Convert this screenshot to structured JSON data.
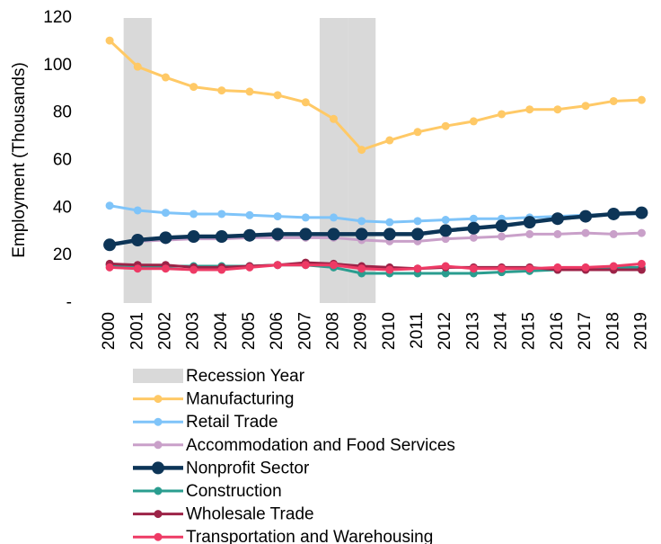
{
  "chart_data": {
    "type": "line",
    "y_label": "Employment (Thousands)",
    "categories": [
      "2000",
      "2001",
      "2002",
      "2003",
      "2004",
      "2005",
      "2006",
      "2007",
      "2008",
      "2009",
      "2010",
      "2011",
      "2012",
      "2013",
      "2014",
      "2015",
      "2016",
      "2017",
      "2018",
      "2019"
    ],
    "ylim": [
      0,
      120
    ],
    "yticks": [
      {
        "value": 0,
        "label": "-"
      },
      20,
      40,
      60,
      80,
      100,
      120
    ],
    "grid": false,
    "legend": "bottom",
    "series": [
      {
        "name": "Recession Year",
        "type": "bar",
        "color": "#d9d9d9",
        "values": [
          null,
          120,
          null,
          null,
          null,
          null,
          null,
          null,
          120,
          120,
          null,
          null,
          null,
          null,
          null,
          null,
          null,
          null,
          null,
          null
        ]
      },
      {
        "name": "Manufacturing",
        "color": "#ffc966",
        "values": [
          110.5,
          99.5,
          95,
          91,
          89.5,
          89,
          87.5,
          84.5,
          77.5,
          64.5,
          68.5,
          72,
          74.5,
          76.5,
          79.5,
          81.5,
          81.5,
          83,
          85,
          85.5
        ]
      },
      {
        "name": "Retail Trade",
        "color": "#7fc4f9",
        "values": [
          41,
          39,
          38,
          37.5,
          37.5,
          37,
          36.5,
          36,
          36,
          34.5,
          34,
          34.5,
          35,
          35.5,
          35.5,
          36,
          36.5,
          37,
          37.5,
          37.5
        ]
      },
      {
        "name": "Accommodation and Food Services",
        "color": "#c9a0c9",
        "values": [
          25,
          26,
          26.5,
          27,
          27,
          27.5,
          27.5,
          27.5,
          27.5,
          26.5,
          26,
          26,
          27,
          27.5,
          28,
          29,
          29,
          29.5,
          29,
          29.5
        ]
      },
      {
        "name": "Nonprofit Sector",
        "color": "#0d3557",
        "values": [
          24.5,
          26.5,
          27.5,
          28,
          28,
          28.5,
          29,
          29,
          29,
          29,
          29,
          29,
          30.5,
          31.5,
          32.5,
          34,
          35.5,
          36.5,
          37.5,
          38
        ]
      },
      {
        "name": "Construction",
        "color": "#2a9d8f",
        "values": [
          16,
          15.5,
          15.5,
          15.5,
          15.5,
          15.5,
          16,
          16,
          15,
          12.5,
          12.5,
          12.5,
          12.5,
          12.5,
          13,
          13.5,
          14,
          14.5,
          15,
          15
        ]
      },
      {
        "name": "Wholesale Trade",
        "color": "#9c2347",
        "values": [
          16.5,
          16,
          16,
          15,
          15,
          15.5,
          16,
          17,
          16.5,
          15.5,
          15,
          14.5,
          15,
          15,
          15,
          15,
          14,
          14,
          14,
          14
        ]
      },
      {
        "name": "Transportation and Warehousing",
        "color": "#ee3a65",
        "values": [
          15,
          14.5,
          14.5,
          14,
          14,
          15,
          16,
          16,
          16,
          14.5,
          14,
          14.5,
          15.5,
          14.5,
          14.5,
          14.5,
          15,
          15,
          15.5,
          16.5
        ]
      }
    ]
  }
}
